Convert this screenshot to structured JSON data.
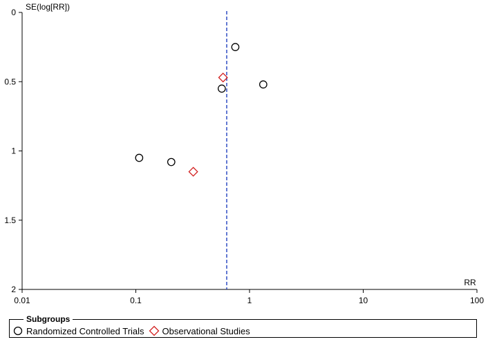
{
  "chart_data": {
    "type": "scatter",
    "title": "",
    "xlabel": "RR",
    "ylabel": "SE(log[RR])",
    "xscale": "log",
    "xlim": [
      0.01,
      100
    ],
    "ylim": [
      0,
      2
    ],
    "y_inverted": true,
    "x_ticks": [
      0.01,
      0.1,
      1,
      10,
      100
    ],
    "x_tick_labels": [
      "0.01",
      "0.1",
      "1",
      "10",
      "100"
    ],
    "y_ticks": [
      0,
      0.5,
      1,
      1.5,
      2
    ],
    "y_tick_labels": [
      "0",
      "0.5",
      "1",
      "1.5",
      "2"
    ],
    "reference_line": {
      "x": 0.63,
      "style": "dashed",
      "color": "#1f3fbf"
    },
    "series": [
      {
        "name": "Randomized Controlled Trials",
        "marker": "circle",
        "color": "#000000",
        "points": [
          {
            "x": 0.75,
            "y": 0.25
          },
          {
            "x": 0.57,
            "y": 0.55
          },
          {
            "x": 1.32,
            "y": 0.52
          },
          {
            "x": 0.107,
            "y": 1.05
          },
          {
            "x": 0.205,
            "y": 1.08
          }
        ]
      },
      {
        "name": "Observational Studies",
        "marker": "diamond",
        "color": "#d21f1f",
        "points": [
          {
            "x": 0.585,
            "y": 0.47
          },
          {
            "x": 0.32,
            "y": 1.15
          }
        ]
      }
    ],
    "legend": {
      "title": "Subgroups",
      "position": "bottom",
      "items": [
        "Randomized Controlled Trials",
        "Observational Studies"
      ]
    }
  }
}
